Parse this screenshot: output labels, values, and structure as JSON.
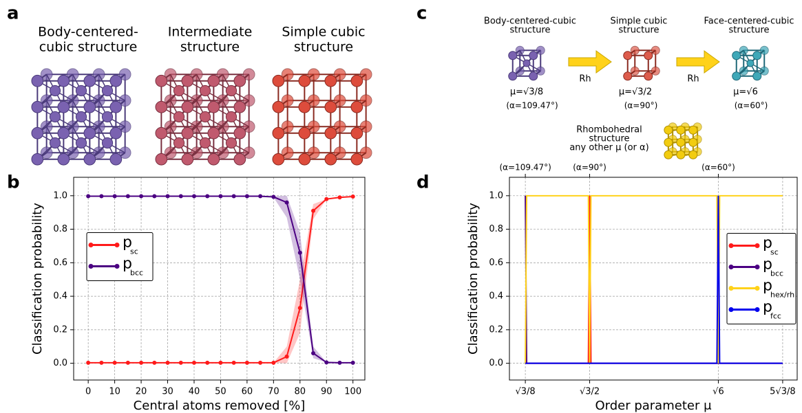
{
  "figure": {
    "panel_labels": [
      "a",
      "b",
      "c",
      "d"
    ],
    "a_titles": [
      [
        "Body-centered-",
        "cubic structure"
      ],
      [
        "Intermediate",
        "structure"
      ],
      [
        "Simple cubic",
        "structure"
      ]
    ],
    "c_structures": [
      {
        "title": [
          "Body-centered-cubic",
          "structure"
        ],
        "mu": "μ=√3/8",
        "alpha": "(α=109.47°)"
      },
      {
        "title": [
          "Simple cubic",
          "structure"
        ],
        "mu": "μ=√3/2",
        "alpha": "(α=90°)"
      },
      {
        "title": [
          "Face-centered-cubic",
          "structure"
        ],
        "mu": "μ=√6",
        "alpha": "(α=60°)"
      }
    ],
    "c_arrow_labels": [
      "Rh",
      "Rh"
    ],
    "c_rhombo": [
      "Rhombohedral",
      "structure",
      "any other μ (or α)"
    ]
  },
  "chart_data": [
    {
      "type": "line",
      "xlabel": "Central atoms removed [%]",
      "ylabel": "Classification probability",
      "x": [
        0,
        5,
        10,
        15,
        20,
        25,
        30,
        35,
        40,
        45,
        50,
        55,
        60,
        65,
        70,
        75,
        80,
        85,
        90,
        95,
        100
      ],
      "xlim": [
        -5.5,
        104.5
      ],
      "xticks": [
        0,
        10,
        20,
        30,
        40,
        50,
        60,
        70,
        80,
        90,
        100
      ],
      "ylim": [
        -0.1,
        1.11
      ],
      "yticks": [
        {
          "value": 0,
          "label": "0.0"
        },
        {
          "value": 0.2,
          "label": "0.2"
        },
        {
          "value": 0.4,
          "label": "0.4"
        },
        {
          "value": 0.6,
          "label": "0.6"
        },
        {
          "value": 0.8,
          "label": "0.8"
        },
        {
          "value": 1,
          "label": "1.0"
        }
      ],
      "grid": true,
      "legend": "center left",
      "markers": true,
      "series": [
        {
          "name": "p",
          "subscript": "sc",
          "color": "#ff1a1a",
          "values": [
            0.003,
            0.003,
            0.003,
            0.003,
            0.003,
            0.003,
            0.003,
            0.003,
            0.003,
            0.003,
            0.003,
            0.003,
            0.003,
            0.003,
            0.003,
            0.04,
            0.33,
            0.91,
            0.98,
            0.99,
            0.995
          ],
          "lower": [
            0.003,
            0.003,
            0.003,
            0.003,
            0.003,
            0.003,
            0.003,
            0.003,
            0.003,
            0.003,
            0.003,
            0.003,
            0.003,
            0.003,
            0.003,
            0.0,
            0.18,
            0.86,
            0.98,
            0.99,
            0.995
          ],
          "upper": [
            0.003,
            0.003,
            0.003,
            0.003,
            0.003,
            0.003,
            0.003,
            0.003,
            0.003,
            0.003,
            0.003,
            0.003,
            0.003,
            0.003,
            0.003,
            0.1,
            0.5,
            0.95,
            0.98,
            0.99,
            0.995
          ]
        },
        {
          "name": "p",
          "subscript": "bcc",
          "color": "#4b0082",
          "values": [
            0.997,
            0.997,
            0.997,
            0.997,
            0.997,
            0.997,
            0.997,
            0.997,
            0.997,
            0.997,
            0.997,
            0.997,
            0.997,
            0.997,
            0.993,
            0.96,
            0.66,
            0.06,
            0.005,
            0.003,
            0.003
          ],
          "lower": [
            0.997,
            0.997,
            0.997,
            0.997,
            0.997,
            0.997,
            0.997,
            0.997,
            0.997,
            0.997,
            0.997,
            0.997,
            0.997,
            0.997,
            0.99,
            0.87,
            0.5,
            0.03,
            0.005,
            0.003,
            0.003
          ],
          "upper": [
            0.997,
            0.997,
            0.997,
            0.997,
            0.997,
            0.997,
            0.997,
            0.997,
            0.997,
            0.997,
            0.997,
            0.997,
            0.997,
            0.997,
            0.997,
            1.0,
            0.78,
            0.1,
            0.005,
            0.003,
            0.003
          ]
        }
      ]
    },
    {
      "type": "line",
      "xlabel": "Order parameter μ",
      "ylabel": "Classification probability",
      "x": [
        0.6124,
        0.625,
        1.2124,
        1.2247,
        1.237,
        2.436,
        2.4495,
        2.462,
        3.0619
      ],
      "xlim": [
        0.461,
        3.2
      ],
      "xticks": [
        {
          "value": 0.6124,
          "label": "√3/8"
        },
        {
          "value": 1.2247,
          "label": "√3/2"
        },
        {
          "value": 2.4495,
          "label": "√6"
        },
        {
          "value": 3.0619,
          "label": "5√3/8"
        }
      ],
      "x2ticks": [
        {
          "value": 0.6124,
          "label": "(α=109.47°)"
        },
        {
          "value": 1.2247,
          "label": "(α=90°)"
        },
        {
          "value": 2.4495,
          "label": "(α=60°)"
        }
      ],
      "ylim": [
        -0.1,
        1.11
      ],
      "yticks": [
        {
          "value": 0,
          "label": "0.0"
        },
        {
          "value": 0.2,
          "label": "0.2"
        },
        {
          "value": 0.4,
          "label": "0.4"
        },
        {
          "value": 0.6,
          "label": "0.6"
        },
        {
          "value": 0.8,
          "label": "0.8"
        },
        {
          "value": 1,
          "label": "1.0"
        }
      ],
      "grid": true,
      "legend": "center right",
      "markers": false,
      "series": [
        {
          "name": "p",
          "subscript": "sc",
          "color": "#ff1a1a",
          "values": [
            0,
            0,
            0,
            1,
            0,
            0,
            0,
            0,
            0
          ]
        },
        {
          "name": "p",
          "subscript": "bcc",
          "color": "#4b0082",
          "values": [
            1,
            0,
            0,
            0,
            0,
            0,
            0,
            0,
            0
          ]
        },
        {
          "name": "p",
          "subscript": "hex/rh",
          "color": "#ffd21a",
          "values": [
            0,
            1,
            1,
            0,
            1,
            1,
            0,
            1,
            1
          ]
        },
        {
          "name": "p",
          "subscript": "fcc",
          "color": "#0000ee",
          "values": [
            0,
            0,
            0,
            0,
            0,
            0,
            1,
            0,
            0
          ]
        }
      ]
    }
  ]
}
